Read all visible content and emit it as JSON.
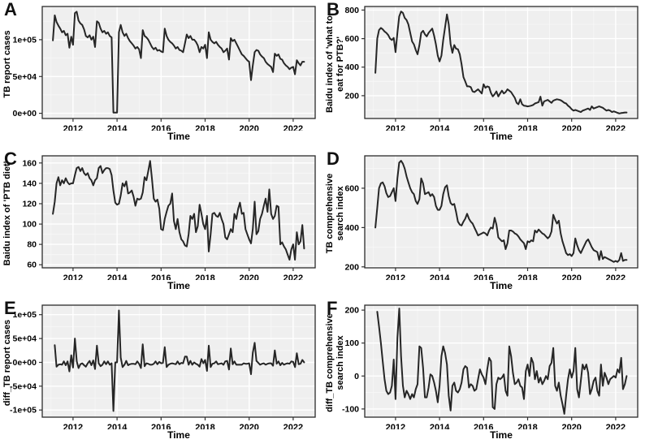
{
  "figure": {
    "panel_bg": "#efefef",
    "grid_major_color": "#ffffff",
    "grid_minor_color": "#f8f8f8",
    "line_color": "#262626",
    "border_color": "#2b2b2b",
    "axis_text_color": "#000000"
  },
  "chart_data": [
    {
      "panel": "A",
      "type": "line",
      "ylabel": "TB report cases",
      "xlabel": "Time",
      "xlim": [
        2010.6,
        2023.0
      ],
      "ylim": [
        -7000,
        145000
      ],
      "xticks": [
        2012,
        2014,
        2016,
        2018,
        2020,
        2022
      ],
      "yticks": [
        0,
        50000,
        100000
      ],
      "ytick_labels": [
        "0e+00",
        "5e+04",
        "1e+05"
      ],
      "x_start": 2011.0833,
      "x_step": 0.08333,
      "values": [
        99000,
        133000,
        124000,
        119000,
        115000,
        110000,
        112000,
        106000,
        108000,
        89000,
        104000,
        93000,
        136000,
        138000,
        126000,
        122000,
        120000,
        114000,
        105000,
        103000,
        106000,
        100000,
        104000,
        90000,
        125000,
        123000,
        115000,
        110000,
        112000,
        108000,
        110000,
        105000,
        103000,
        1000,
        1000,
        1000,
        110000,
        120000,
        110000,
        105000,
        108000,
        102000,
        98000,
        95000,
        92000,
        88000,
        90000,
        87000,
        75000,
        113000,
        105000,
        103000,
        100000,
        95000,
        90000,
        87000,
        89000,
        85000,
        86000,
        84000,
        83000,
        115000,
        105000,
        100000,
        97000,
        95000,
        92000,
        88000,
        90000,
        86000,
        85000,
        83000,
        95000,
        107000,
        102000,
        105000,
        100000,
        100000,
        97000,
        92000,
        83000,
        90000,
        88000,
        93000,
        75000,
        110000,
        100000,
        97000,
        95000,
        97000,
        93000,
        90000,
        88000,
        83000,
        85000,
        88000,
        73000,
        102000,
        98000,
        100000,
        95000,
        90000,
        85000,
        80000,
        78000,
        75000,
        72000,
        70000,
        45000,
        65000,
        83000,
        86000,
        85000,
        80000,
        77000,
        75000,
        70000,
        67000,
        65000,
        63000,
        56000,
        81000,
        78000,
        80000,
        74000,
        73000,
        68000,
        65000,
        63000,
        60000,
        62000,
        63000,
        53000,
        72000,
        68000,
        65000,
        70000,
        70000
      ]
    },
    {
      "panel": "B",
      "type": "line",
      "ylabel": "Baidu index of 'what to\neat for PTB?'",
      "xlabel": "Time",
      "xlim": [
        2010.6,
        2023.0
      ],
      "ylim": [
        40,
        825
      ],
      "xticks": [
        2012,
        2014,
        2016,
        2018,
        2020,
        2022
      ],
      "yticks": [
        200,
        400,
        600,
        800
      ],
      "ytick_labels": [
        "200",
        "400",
        "600",
        "800"
      ],
      "x_start": 2011.0833,
      "x_step": 0.08333,
      "values": [
        360,
        600,
        660,
        675,
        665,
        650,
        640,
        625,
        600,
        590,
        605,
        505,
        640,
        755,
        790,
        780,
        745,
        730,
        700,
        640,
        580,
        560,
        520,
        490,
        555,
        640,
        655,
        630,
        615,
        640,
        655,
        670,
        620,
        560,
        480,
        440,
        480,
        590,
        680,
        770,
        700,
        560,
        500,
        555,
        530,
        525,
        490,
        420,
        330,
        300,
        265,
        265,
        260,
        230,
        225,
        235,
        245,
        230,
        215,
        280,
        255,
        265,
        260,
        220,
        195,
        210,
        230,
        195,
        215,
        235,
        215,
        225,
        245,
        235,
        225,
        205,
        185,
        150,
        140,
        175,
        140,
        130,
        128,
        125,
        127,
        130,
        135,
        145,
        150,
        155,
        193,
        130,
        160,
        165,
        170,
        160,
        150,
        165,
        170,
        175,
        172,
        168,
        160,
        150,
        145,
        130,
        120,
        105,
        95,
        100,
        95,
        90,
        85,
        95,
        100,
        105,
        110,
        100,
        125,
        110,
        115,
        120,
        125,
        120,
        115,
        105,
        95,
        100,
        95,
        85,
        90,
        85,
        80,
        75,
        78,
        80,
        82,
        82
      ]
    },
    {
      "panel": "C",
      "type": "line",
      "ylabel": "Baidu index of 'PTB diet'",
      "xlabel": "Time",
      "xlim": [
        2010.6,
        2023.0
      ],
      "ylim": [
        57,
        167
      ],
      "xticks": [
        2012,
        2014,
        2016,
        2018,
        2020,
        2022
      ],
      "yticks": [
        60,
        80,
        100,
        120,
        140,
        160
      ],
      "ytick_labels": [
        "60",
        "80",
        "100",
        "120",
        "140",
        "160"
      ],
      "x_start": 2011.0833,
      "x_step": 0.08333,
      "values": [
        110,
        122,
        140,
        146,
        138,
        143,
        140,
        145,
        141,
        139,
        140,
        140,
        148,
        155,
        156,
        152,
        155,
        150,
        148,
        150,
        145,
        143,
        138,
        143,
        145,
        155,
        157,
        150,
        153,
        155,
        155,
        154,
        148,
        133,
        121,
        119,
        120,
        128,
        140,
        137,
        142,
        130,
        131,
        133,
        127,
        118,
        125,
        124,
        125,
        131,
        146,
        143,
        152,
        162,
        145,
        125,
        122,
        124,
        115,
        95,
        94,
        105,
        112,
        118,
        120,
        130,
        103,
        95,
        105,
        92,
        85,
        83,
        79,
        78,
        90,
        108,
        105,
        110,
        92,
        98,
        119,
        110,
        100,
        95,
        108,
        73,
        90,
        110,
        111,
        108,
        107,
        111,
        105,
        100,
        87,
        85,
        90,
        95,
        92,
        110,
        105,
        115,
        121,
        110,
        111,
        95,
        90,
        85,
        81,
        95,
        122,
        90,
        93,
        105,
        110,
        118,
        125,
        112,
        134,
        110,
        105,
        108,
        118,
        117,
        80,
        82,
        78,
        75,
        70,
        65,
        75,
        80,
        65,
        92,
        80,
        83,
        99,
        76
      ]
    },
    {
      "panel": "D",
      "type": "line",
      "ylabel": "TB comprehensive\nsearch index",
      "xlabel": "Time",
      "xlim": [
        2010.6,
        2023.0
      ],
      "ylim": [
        195,
        765
      ],
      "xticks": [
        2012,
        2014,
        2016,
        2018,
        2020,
        2022
      ],
      "yticks": [
        200,
        400,
        600
      ],
      "ytick_labels": [
        "200",
        "400",
        "600"
      ],
      "x_start": 2011.0833,
      "x_step": 0.08333,
      "values": [
        400,
        500,
        600,
        625,
        630,
        610,
        575,
        555,
        560,
        580,
        600,
        535,
        650,
        730,
        740,
        725,
        700,
        660,
        630,
        600,
        580,
        570,
        535,
        520,
        545,
        650,
        625,
        570,
        575,
        580,
        560,
        570,
        555,
        510,
        490,
        490,
        510,
        570,
        605,
        615,
        560,
        525,
        515,
        520,
        480,
        430,
        415,
        410,
        430,
        445,
        470,
        445,
        430,
        420,
        400,
        380,
        360,
        365,
        370,
        375,
        370,
        360,
        385,
        400,
        395,
        450,
        415,
        350,
        340,
        330,
        335,
        290,
        320,
        385,
        385,
        380,
        370,
        365,
        355,
        340,
        330,
        320,
        290,
        330,
        325,
        335,
        330,
        385,
        375,
        390,
        380,
        370,
        365,
        355,
        345,
        355,
        380,
        465,
        440,
        420,
        435,
        370,
        330,
        300,
        270,
        260,
        265,
        255,
        270,
        345,
        310,
        285,
        270,
        290,
        310,
        330,
        340,
        320,
        300,
        285,
        280,
        275,
        235,
        280,
        240,
        250,
        245,
        240,
        235,
        230,
        225,
        230,
        225,
        235,
        270,
        230,
        235,
        235
      ]
    },
    {
      "panel": "E",
      "type": "line",
      "ylabel": "diff_TB report cases",
      "xlabel": "Time",
      "xlim": [
        2010.6,
        2023.0
      ],
      "ylim": [
        -115000,
        120000
      ],
      "xticks": [
        2012,
        2014,
        2016,
        2018,
        2020,
        2022
      ],
      "yticks": [
        -100000,
        -50000,
        0,
        50000,
        100000
      ],
      "ytick_labels": [
        "-1e+05",
        "-5e+04",
        "0e+00",
        "5e+04",
        "1e+05"
      ],
      "x_start": 2011.1667,
      "x_step": 0.08333,
      "values": [
        36000,
        -9000,
        -5000,
        -4000,
        -5000,
        2000,
        -6000,
        2000,
        -19000,
        15000,
        -11000,
        50000,
        2000,
        -12000,
        -4000,
        -2000,
        -6000,
        -9000,
        -2000,
        3000,
        -6000,
        4000,
        -14000,
        35000,
        -2000,
        -8000,
        -5000,
        2000,
        -4000,
        2000,
        -5000,
        -2000,
        -102000,
        0,
        0,
        109000,
        10000,
        -10000,
        -5000,
        3000,
        -6000,
        -4000,
        -3000,
        -3000,
        -4000,
        2000,
        -3000,
        -12000,
        38000,
        -8000,
        -2000,
        -3000,
        -5000,
        -5000,
        -3000,
        2000,
        -4000,
        1000,
        -2000,
        -1000,
        32000,
        -10000,
        -5000,
        -3000,
        -2000,
        -3000,
        -4000,
        2000,
        -4000,
        -1000,
        -2000,
        12000,
        12000,
        -5000,
        3000,
        -5000,
        0,
        -3000,
        -5000,
        -9000,
        7000,
        -2000,
        5000,
        -18000,
        35000,
        -10000,
        -3000,
        -2000,
        2000,
        -4000,
        -3000,
        -2000,
        -5000,
        2000,
        3000,
        -15000,
        29000,
        -4000,
        2000,
        -5000,
        -5000,
        -5000,
        -5000,
        -2000,
        -3000,
        -3000,
        -2000,
        -25000,
        20000,
        41000,
        3000,
        -1000,
        -5000,
        -3000,
        -2000,
        -5000,
        -3000,
        -2000,
        -2000,
        -7000,
        25000,
        -3000,
        2000,
        -6000,
        -1000,
        -5000,
        -3000,
        -2000,
        -3000,
        2000,
        1000,
        -10000,
        19000,
        -4000,
        -3000,
        5000,
        0
      ]
    },
    {
      "panel": "F",
      "type": "line",
      "ylabel": "diff_TB comprehensive\nsearch index",
      "xlabel": "Time",
      "xlim": [
        2010.6,
        2023.0
      ],
      "ylim": [
        -125,
        215
      ],
      "xticks": [
        2012,
        2014,
        2016,
        2018,
        2020,
        2022
      ],
      "yticks": [
        -100,
        0,
        100,
        200
      ],
      "ytick_labels": [
        "-100",
        "0",
        "100",
        "200"
      ],
      "x_start": 2011.1667,
      "x_step": 0.08333,
      "values": [
        195,
        150,
        100,
        45,
        -10,
        -45,
        -55,
        -50,
        -30,
        50,
        -70,
        115,
        205,
        60,
        -30,
        -65,
        -45,
        -55,
        -70,
        -55,
        -65,
        -40,
        -25,
        90,
        85,
        25,
        -65,
        -65,
        -35,
        5,
        0,
        -20,
        -45,
        -80,
        -30,
        60,
        90,
        70,
        35,
        -60,
        -105,
        -30,
        -20,
        -45,
        -50,
        -40,
        -20,
        20,
        30,
        25,
        -35,
        -25,
        -30,
        -45,
        -40,
        -10,
        20,
        5,
        -5,
        -25,
        20,
        55,
        45,
        -95,
        -100,
        -25,
        -5,
        -10,
        -5,
        5,
        -45,
        -60,
        90,
        60,
        10,
        -25,
        -20,
        -10,
        -30,
        -35,
        -70,
        15,
        35,
        0,
        55,
        40,
        -10,
        15,
        -20,
        -5,
        -25,
        -15,
        0,
        -10,
        30,
        40,
        85,
        -30,
        -45,
        -20,
        -60,
        -85,
        -115,
        -60,
        -10,
        20,
        -5,
        15,
        85,
        -40,
        -65,
        -15,
        35,
        20,
        35,
        10,
        -55,
        -40,
        -15,
        -5,
        -45,
        -60,
        35,
        -30,
        10,
        -5,
        -25,
        -10,
        -5,
        0,
        -5,
        20,
        10,
        55,
        -40,
        -25,
        0
      ]
    }
  ]
}
